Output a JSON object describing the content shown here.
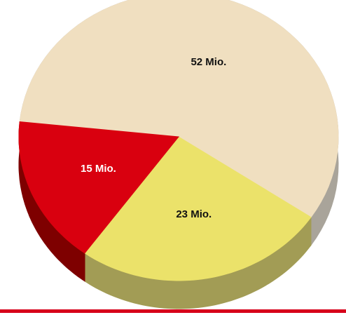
{
  "chart_data": {
    "type": "pie",
    "categories": [
      null,
      null,
      null
    ],
    "values": [
      52,
      23,
      15
    ],
    "value_labels": [
      "52 Mio.",
      "23 Mio.",
      "15 Mio."
    ],
    "colors": [
      "#f0dfc0",
      "#ebe26a",
      "#d9000f"
    ],
    "side_colors": [
      "#a9a49a",
      "#a29c55",
      "#7e0000"
    ]
  }
}
